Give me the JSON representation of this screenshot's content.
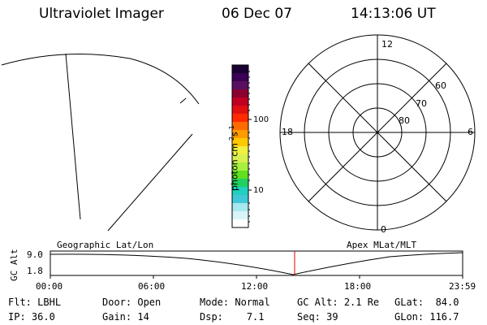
{
  "header": {
    "instrument": "Ultraviolet Imager",
    "date": "06 Dec 07",
    "time": "14:13:06 UT"
  },
  "colorbar": {
    "label_prefix": "photon cm",
    "label_exp1": "-2",
    "label_mid": "s",
    "label_exp2": "-1",
    "tick_100": "100",
    "tick_10": "10",
    "colors": [
      "#1a0033",
      "#3a0055",
      "#5a1060",
      "#8a0030",
      "#c00020",
      "#e01010",
      "#ff2a00",
      "#ff6a00",
      "#ff9a00",
      "#ffc800",
      "#f0f040",
      "#d8f050",
      "#a8f040",
      "#60e020",
      "#20d060",
      "#20d0c0",
      "#40c8d8",
      "#a8e8ef",
      "#d8f4f8",
      "#ffffff"
    ]
  },
  "polar": {
    "mlt_12": "12",
    "mlt_18": "18",
    "mlt_6": "6",
    "mlt_0": "0",
    "lat_60": "60",
    "lat_70": "70",
    "lat_80": "80"
  },
  "timeline": {
    "ylabel": "GC Alt",
    "y_top": "9.0",
    "y_bottom": "1.8",
    "left_title": "Geographic Lat/Lon",
    "right_title": "Apex MLat/MLT",
    "ticks": [
      "00:00",
      "06:00",
      "12:00",
      "18:00",
      "23:59"
    ]
  },
  "status": {
    "flt_label": "Flt:",
    "flt_value": "LBHL",
    "ip_label": "IP:",
    "ip_value": "36.0",
    "door_label": "Door:",
    "door_value": "Open",
    "gain_label": "Gain:",
    "gain_value": "14",
    "mode_label": "Mode:",
    "mode_value": "Normal",
    "dsp_label": "Dsp:",
    "dsp_value": "7.1",
    "gcalt_label": "GC Alt:",
    "gcalt_value": "2.1 Re",
    "seq_label": "Seq:",
    "seq_value": "39",
    "glat_label": "GLat:",
    "glat_value": "84.0",
    "glon_label": "GLon:",
    "glon_value": "116.7"
  }
}
